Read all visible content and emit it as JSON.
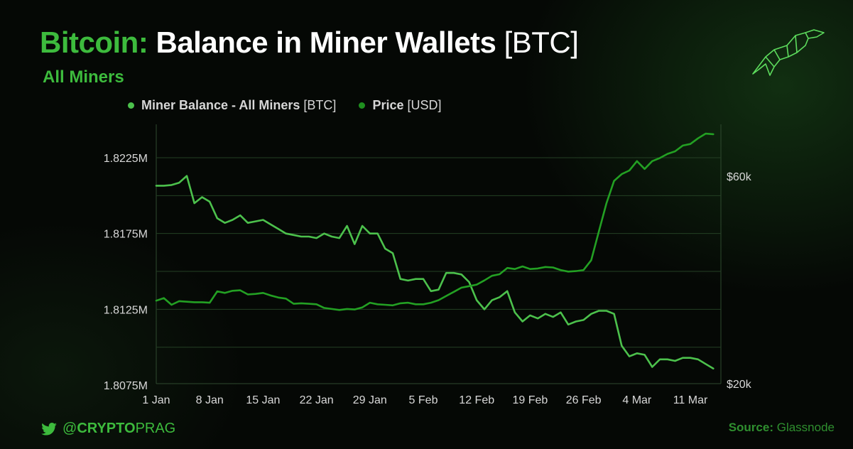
{
  "header": {
    "title_accent": "Bitcoin:",
    "title_main": "Balance in Miner Wallets",
    "title_unit": "[BTC]",
    "subtitle": "All Miners"
  },
  "legend": [
    {
      "name": "Miner Balance - All Miners",
      "unit": "[BTC]",
      "color": "#4cc14c"
    },
    {
      "name": "Price",
      "unit": "[USD]",
      "color": "#1f8f1f"
    }
  ],
  "footer": {
    "handle_prefix": "@",
    "handle_bold": "CRYPTO",
    "handle_rest": "PRAG",
    "source_label": "Source:",
    "source_name": "Glassnode"
  },
  "colors": {
    "accent": "#3dbb3d",
    "balance_line": "#4cc14c",
    "price_line": "#23a023",
    "gridline": "#2e4a2e",
    "background": "#050805"
  },
  "icons": {
    "twitter": "twitter-bird-icon",
    "logo": "bull-logo-icon"
  },
  "chart_data": {
    "type": "line",
    "x_tick_labels": [
      "1 Jan",
      "8 Jan",
      "15 Jan",
      "22 Jan",
      "29 Jan",
      "5 Feb",
      "12 Feb",
      "19 Feb",
      "26 Feb",
      "4 Mar",
      "11 Mar"
    ],
    "x_tick_days": [
      0,
      7,
      14,
      21,
      28,
      35,
      42,
      49,
      56,
      63,
      70
    ],
    "x_range_days": [
      0,
      74
    ],
    "y_left": {
      "ticks": [
        1.8225,
        1.8175,
        1.8125,
        1.8075
      ],
      "tick_labels": [
        "1.8225M",
        "1.8175M",
        "1.8125M",
        "1.8075M"
      ],
      "range": [
        1.8076,
        1.8247
      ]
    },
    "y_right": {
      "ticks": [
        60000,
        20000
      ],
      "tick_labels": [
        "$60k",
        "$20k"
      ],
      "range": [
        20000,
        70000
      ]
    },
    "grid": true,
    "series": [
      {
        "name": "Miner Balance - All Miners [BTC]",
        "axis": "left",
        "values": [
          [
            0,
            1.82065
          ],
          [
            1,
            1.82065
          ],
          [
            2,
            1.8207
          ],
          [
            3,
            1.82085
          ],
          [
            4,
            1.8213
          ],
          [
            5,
            1.8195
          ],
          [
            6,
            1.8199
          ],
          [
            7,
            1.8196
          ],
          [
            8,
            1.8185
          ],
          [
            9,
            1.8182
          ],
          [
            10,
            1.8184
          ],
          [
            11,
            1.8187
          ],
          [
            12,
            1.8182
          ],
          [
            13,
            1.8183
          ],
          [
            14,
            1.8184
          ],
          [
            15,
            1.8181
          ],
          [
            16,
            1.8178
          ],
          [
            17,
            1.8175
          ],
          [
            18,
            1.8174
          ],
          [
            19,
            1.8173
          ],
          [
            20,
            1.8173
          ],
          [
            21,
            1.8172
          ],
          [
            22,
            1.8175
          ],
          [
            23,
            1.8173
          ],
          [
            24,
            1.8172
          ],
          [
            25,
            1.818
          ],
          [
            26,
            1.8168
          ],
          [
            27,
            1.818
          ],
          [
            28,
            1.8175
          ],
          [
            29,
            1.8175
          ],
          [
            30,
            1.8165
          ],
          [
            31,
            1.8162
          ],
          [
            32,
            1.8145
          ],
          [
            33,
            1.8144
          ],
          [
            34,
            1.8145
          ],
          [
            35,
            1.8145
          ],
          [
            36,
            1.8137
          ],
          [
            37,
            1.8138
          ],
          [
            38,
            1.8149
          ],
          [
            39,
            1.8149
          ],
          [
            40,
            1.8148
          ],
          [
            41,
            1.8143
          ],
          [
            42,
            1.8131
          ],
          [
            43,
            1.8125
          ],
          [
            44,
            1.8131
          ],
          [
            45,
            1.8133
          ],
          [
            46,
            1.8137
          ],
          [
            47,
            1.8123
          ],
          [
            48,
            1.8117
          ],
          [
            49,
            1.8121
          ],
          [
            50,
            1.8119
          ],
          [
            51,
            1.8122
          ],
          [
            52,
            1.812
          ],
          [
            53,
            1.8123
          ],
          [
            54,
            1.8115
          ],
          [
            55,
            1.8117
          ],
          [
            56,
            1.8118
          ],
          [
            57,
            1.8122
          ],
          [
            58,
            1.8124
          ],
          [
            59,
            1.8124
          ],
          [
            60,
            1.8122
          ],
          [
            61,
            1.8101
          ],
          [
            62,
            1.8094
          ],
          [
            63,
            1.8096
          ],
          [
            64,
            1.8095
          ],
          [
            65,
            1.8087
          ],
          [
            66,
            1.8092
          ],
          [
            67,
            1.8092
          ],
          [
            68,
            1.8091
          ],
          [
            69,
            1.8093
          ],
          [
            70,
            1.8093
          ],
          [
            71,
            1.8092
          ],
          [
            72,
            1.8089
          ],
          [
            73,
            1.8086
          ]
        ]
      },
      {
        "name": "Price [USD]",
        "axis": "right",
        "values": [
          [
            0,
            36000
          ],
          [
            1,
            36500
          ],
          [
            2,
            35200
          ],
          [
            3,
            35900
          ],
          [
            4,
            35800
          ],
          [
            5,
            35700
          ],
          [
            6,
            35700
          ],
          [
            7,
            35600
          ],
          [
            8,
            37800
          ],
          [
            9,
            37500
          ],
          [
            10,
            37900
          ],
          [
            11,
            38000
          ],
          [
            12,
            37200
          ],
          [
            13,
            37300
          ],
          [
            14,
            37500
          ],
          [
            15,
            37000
          ],
          [
            16,
            36600
          ],
          [
            17,
            36400
          ],
          [
            18,
            35400
          ],
          [
            19,
            35500
          ],
          [
            20,
            35400
          ],
          [
            21,
            35300
          ],
          [
            22,
            34600
          ],
          [
            23,
            34400
          ],
          [
            24,
            34200
          ],
          [
            25,
            34400
          ],
          [
            26,
            34300
          ],
          [
            27,
            34700
          ],
          [
            28,
            35600
          ],
          [
            29,
            35300
          ],
          [
            30,
            35200
          ],
          [
            31,
            35100
          ],
          [
            32,
            35500
          ],
          [
            33,
            35600
          ],
          [
            34,
            35300
          ],
          [
            35,
            35300
          ],
          [
            36,
            35600
          ],
          [
            37,
            36100
          ],
          [
            38,
            36900
          ],
          [
            39,
            37700
          ],
          [
            40,
            38500
          ],
          [
            41,
            38800
          ],
          [
            42,
            39100
          ],
          [
            43,
            39900
          ],
          [
            44,
            40800
          ],
          [
            45,
            41100
          ],
          [
            46,
            42300
          ],
          [
            47,
            42100
          ],
          [
            48,
            42600
          ],
          [
            49,
            42100
          ],
          [
            50,
            42200
          ],
          [
            51,
            42500
          ],
          [
            52,
            42400
          ],
          [
            53,
            41900
          ],
          [
            54,
            41600
          ],
          [
            55,
            41700
          ],
          [
            56,
            41900
          ],
          [
            57,
            43800
          ],
          [
            58,
            49300
          ],
          [
            59,
            54800
          ],
          [
            60,
            59100
          ],
          [
            61,
            60400
          ],
          [
            62,
            61100
          ],
          [
            63,
            62900
          ],
          [
            64,
            61400
          ],
          [
            65,
            62900
          ],
          [
            66,
            63500
          ],
          [
            67,
            64300
          ],
          [
            68,
            64800
          ],
          [
            69,
            65900
          ],
          [
            70,
            66200
          ],
          [
            71,
            67300
          ],
          [
            72,
            68200
          ],
          [
            73,
            68100
          ]
        ]
      }
    ]
  }
}
